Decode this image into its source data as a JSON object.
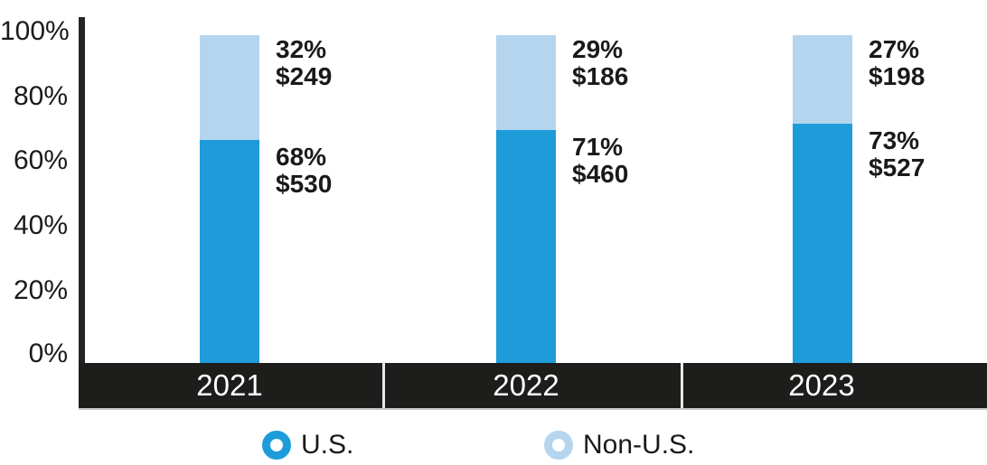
{
  "chart_data": {
    "type": "bar",
    "stacked": true,
    "title": "",
    "categories": [
      "2021",
      "2022",
      "2023"
    ],
    "series": [
      {
        "name": "U.S.",
        "color": "#1E9CD9",
        "values": [
          68,
          71,
          73
        ],
        "pct_labels": [
          "68%",
          "71%",
          "73%"
        ],
        "dollar_labels": [
          "$530",
          "$460",
          "$527"
        ]
      },
      {
        "name": "Non-U.S.",
        "color": "#B5D5EF",
        "values": [
          32,
          29,
          27
        ],
        "pct_labels": [
          "32%",
          "29%",
          "27%"
        ],
        "dollar_labels": [
          "$249",
          "$186",
          "$198"
        ]
      }
    ],
    "y_axis": {
      "ticks": [
        "100%",
        "80%",
        "60%",
        "40%",
        "20%",
        "0%"
      ],
      "min": 0,
      "max": 100,
      "unit": "%"
    },
    "legend": {
      "position": "bottom",
      "items": [
        "U.S.",
        "Non-U.S."
      ]
    },
    "colors": {
      "x_band_background": "#1D1D1B",
      "x_band_divider": "#E8E8E8",
      "x_label_text": "#FFFFFF",
      "axis_line": "#242424",
      "label_text": "#1A1A1A"
    }
  }
}
